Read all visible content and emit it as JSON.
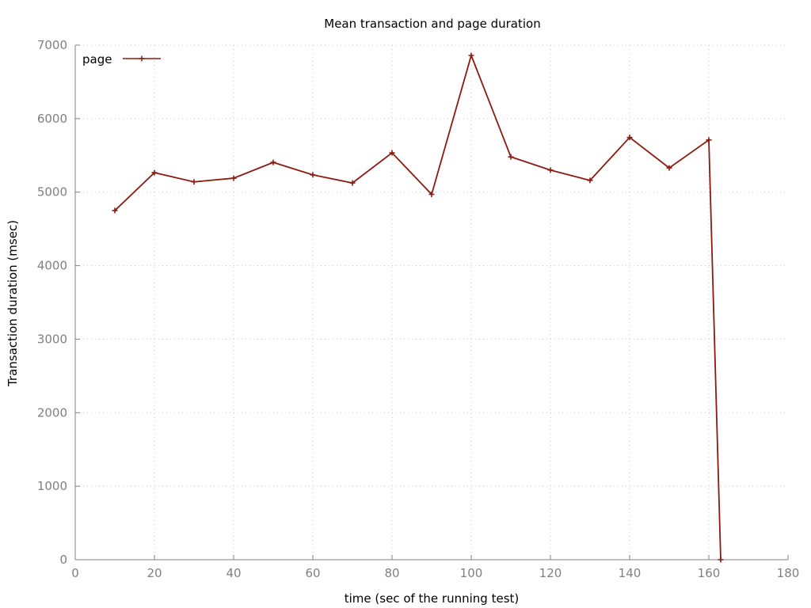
{
  "chart_data": {
    "type": "line",
    "title": "Mean transaction and page duration",
    "xlabel": "time (sec of the running test)",
    "ylabel": "Transaction duration (msec)",
    "xlim": [
      0,
      180
    ],
    "ylim": [
      0,
      7000
    ],
    "xticks": [
      0,
      20,
      40,
      60,
      80,
      100,
      120,
      140,
      160,
      180
    ],
    "yticks": [
      0,
      1000,
      2000,
      3000,
      4000,
      5000,
      6000,
      7000
    ],
    "grid": true,
    "legend_position": "top-left",
    "series": [
      {
        "name": "page",
        "color": "#8b1a10",
        "marker": "plus",
        "x": [
          10,
          20,
          30,
          40,
          50,
          60,
          70,
          80,
          90,
          100,
          110,
          120,
          130,
          140,
          150,
          160,
          163
        ],
        "y": [
          4750,
          5265,
          5140,
          5190,
          5405,
          5235,
          5125,
          5535,
          4970,
          6860,
          5480,
          5300,
          5160,
          5745,
          5330,
          5710,
          0
        ]
      }
    ]
  }
}
